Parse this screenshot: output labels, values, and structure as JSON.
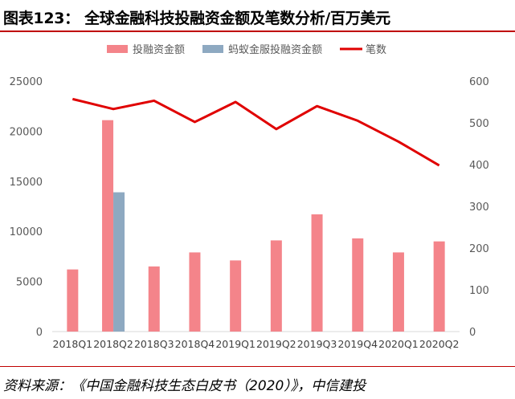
{
  "title": "图表123：   全球金融科技投融资金额及笔数分析/百万美元",
  "source": "资料来源：《中国金融科技生态白皮书（2020）》，中信建投",
  "chart_data": {
    "type": "bar",
    "categories": [
      "2018Q1",
      "2018Q2",
      "2018Q3",
      "2018Q4",
      "2019Q1",
      "2019Q2",
      "2019Q3",
      "2019Q4",
      "2020Q1",
      "2020Q2"
    ],
    "series": [
      {
        "name": "投融资金额",
        "type": "bar",
        "axis": "left",
        "color": "#f4848a",
        "values": [
          6200,
          21100,
          6500,
          7900,
          7100,
          9100,
          11700,
          9300,
          7900,
          9000
        ]
      },
      {
        "name": "蚂蚁金服投融资金额",
        "type": "bar",
        "axis": "left",
        "color": "#8ea9c1",
        "values": [
          null,
          13900,
          null,
          null,
          null,
          null,
          null,
          null,
          null,
          null
        ]
      },
      {
        "name": "笔数",
        "type": "line",
        "axis": "right",
        "color": "#e00000",
        "values": [
          557,
          533,
          553,
          502,
          550,
          485,
          540,
          505,
          455,
          398
        ]
      }
    ],
    "ylim_left": [
      0,
      25000
    ],
    "yticks_left": [
      0,
      5000,
      10000,
      15000,
      20000,
      25000
    ],
    "ylim_right": [
      0,
      600
    ],
    "yticks_right": [
      0,
      100,
      200,
      300,
      400,
      500,
      600
    ],
    "legend_position": "top",
    "grid": false
  }
}
